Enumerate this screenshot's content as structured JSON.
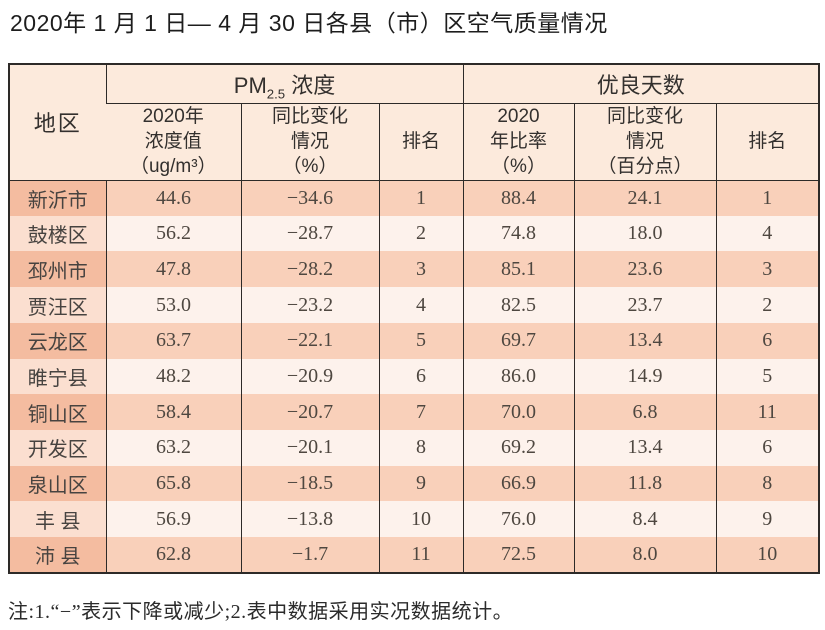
{
  "title": "2020年 1 月 1 日— 4 月 30 日各县（市）区空气质量情况",
  "table": {
    "header": {
      "region": "地区",
      "pm_group": {
        "prefix": "PM",
        "sub": "2.5",
        "suffix": " 浓度"
      },
      "good_group": "优良天数",
      "sub": {
        "pm_value": "2020年\n浓度值\n（ug/m³）",
        "pm_change": "同比变化\n情况\n（%）",
        "pm_rank": "排名",
        "good_ratio": "2020\n年比率\n（%）",
        "good_change": "同比变化\n情况\n（百分点）",
        "good_rank": "排名"
      }
    },
    "rows": [
      {
        "region": "新沂市",
        "pm_value": "44.6",
        "pm_change": "−34.6",
        "pm_rank": "1",
        "good_ratio": "88.4",
        "good_change": "24.1",
        "good_rank": "1"
      },
      {
        "region": "鼓楼区",
        "pm_value": "56.2",
        "pm_change": "−28.7",
        "pm_rank": "2",
        "good_ratio": "74.8",
        "good_change": "18.0",
        "good_rank": "4"
      },
      {
        "region": "邳州市",
        "pm_value": "47.8",
        "pm_change": "−28.2",
        "pm_rank": "3",
        "good_ratio": "85.1",
        "good_change": "23.6",
        "good_rank": "3"
      },
      {
        "region": "贾汪区",
        "pm_value": "53.0",
        "pm_change": "−23.2",
        "pm_rank": "4",
        "good_ratio": "82.5",
        "good_change": "23.7",
        "good_rank": "2"
      },
      {
        "region": "云龙区",
        "pm_value": "63.7",
        "pm_change": "−22.1",
        "pm_rank": "5",
        "good_ratio": "69.7",
        "good_change": "13.4",
        "good_rank": "6"
      },
      {
        "region": "睢宁县",
        "pm_value": "48.2",
        "pm_change": "−20.9",
        "pm_rank": "6",
        "good_ratio": "86.0",
        "good_change": "14.9",
        "good_rank": "5"
      },
      {
        "region": "铜山区",
        "pm_value": "58.4",
        "pm_change": "−20.7",
        "pm_rank": "7",
        "good_ratio": "70.0",
        "good_change": "6.8",
        "good_rank": "11"
      },
      {
        "region": "开发区",
        "pm_value": "63.2",
        "pm_change": "−20.1",
        "pm_rank": "8",
        "good_ratio": "69.2",
        "good_change": "13.4",
        "good_rank": "6"
      },
      {
        "region": "泉山区",
        "pm_value": "65.8",
        "pm_change": "−18.5",
        "pm_rank": "9",
        "good_ratio": "66.9",
        "good_change": "11.8",
        "good_rank": "8"
      },
      {
        "region": "丰 县",
        "pm_value": "56.9",
        "pm_change": "−13.8",
        "pm_rank": "10",
        "good_ratio": "76.0",
        "good_change": "8.4",
        "good_rank": "9"
      },
      {
        "region": "沛 县",
        "pm_value": "62.8",
        "pm_change": "−1.7",
        "pm_rank": "11",
        "good_ratio": "72.5",
        "good_change": "8.0",
        "good_rank": "10"
      }
    ]
  },
  "note": "注:1.“−”表示下降或减少;2.表中数据采用实况数据统计。"
}
